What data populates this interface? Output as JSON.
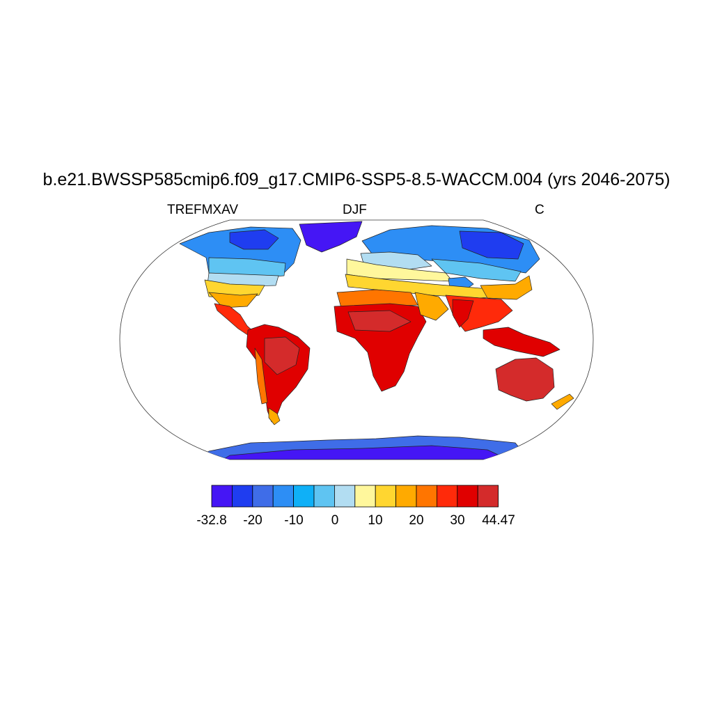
{
  "title": "b.e21.BWSSP585cmip6.f09_g17.CMIP6-SSP5-8.5-WACCM.004 (yrs 2046-2075)",
  "left_label": "TREFMXAV",
  "center_label": "DJF",
  "right_label": "C",
  "colorbar": {
    "colors": [
      "#4516f5",
      "#1f3df0",
      "#3f6de8",
      "#2d8ef5",
      "#0fb0f7",
      "#5fc4f2",
      "#b2ddf2",
      "#fff79c",
      "#ffd630",
      "#ffaa00",
      "#ff7500",
      "#ff2a0a",
      "#e00000",
      "#d42b2b"
    ],
    "labels": [
      "-32.8",
      "-20",
      "-10",
      "0",
      "10",
      "20",
      "30",
      "44.47"
    ]
  }
}
